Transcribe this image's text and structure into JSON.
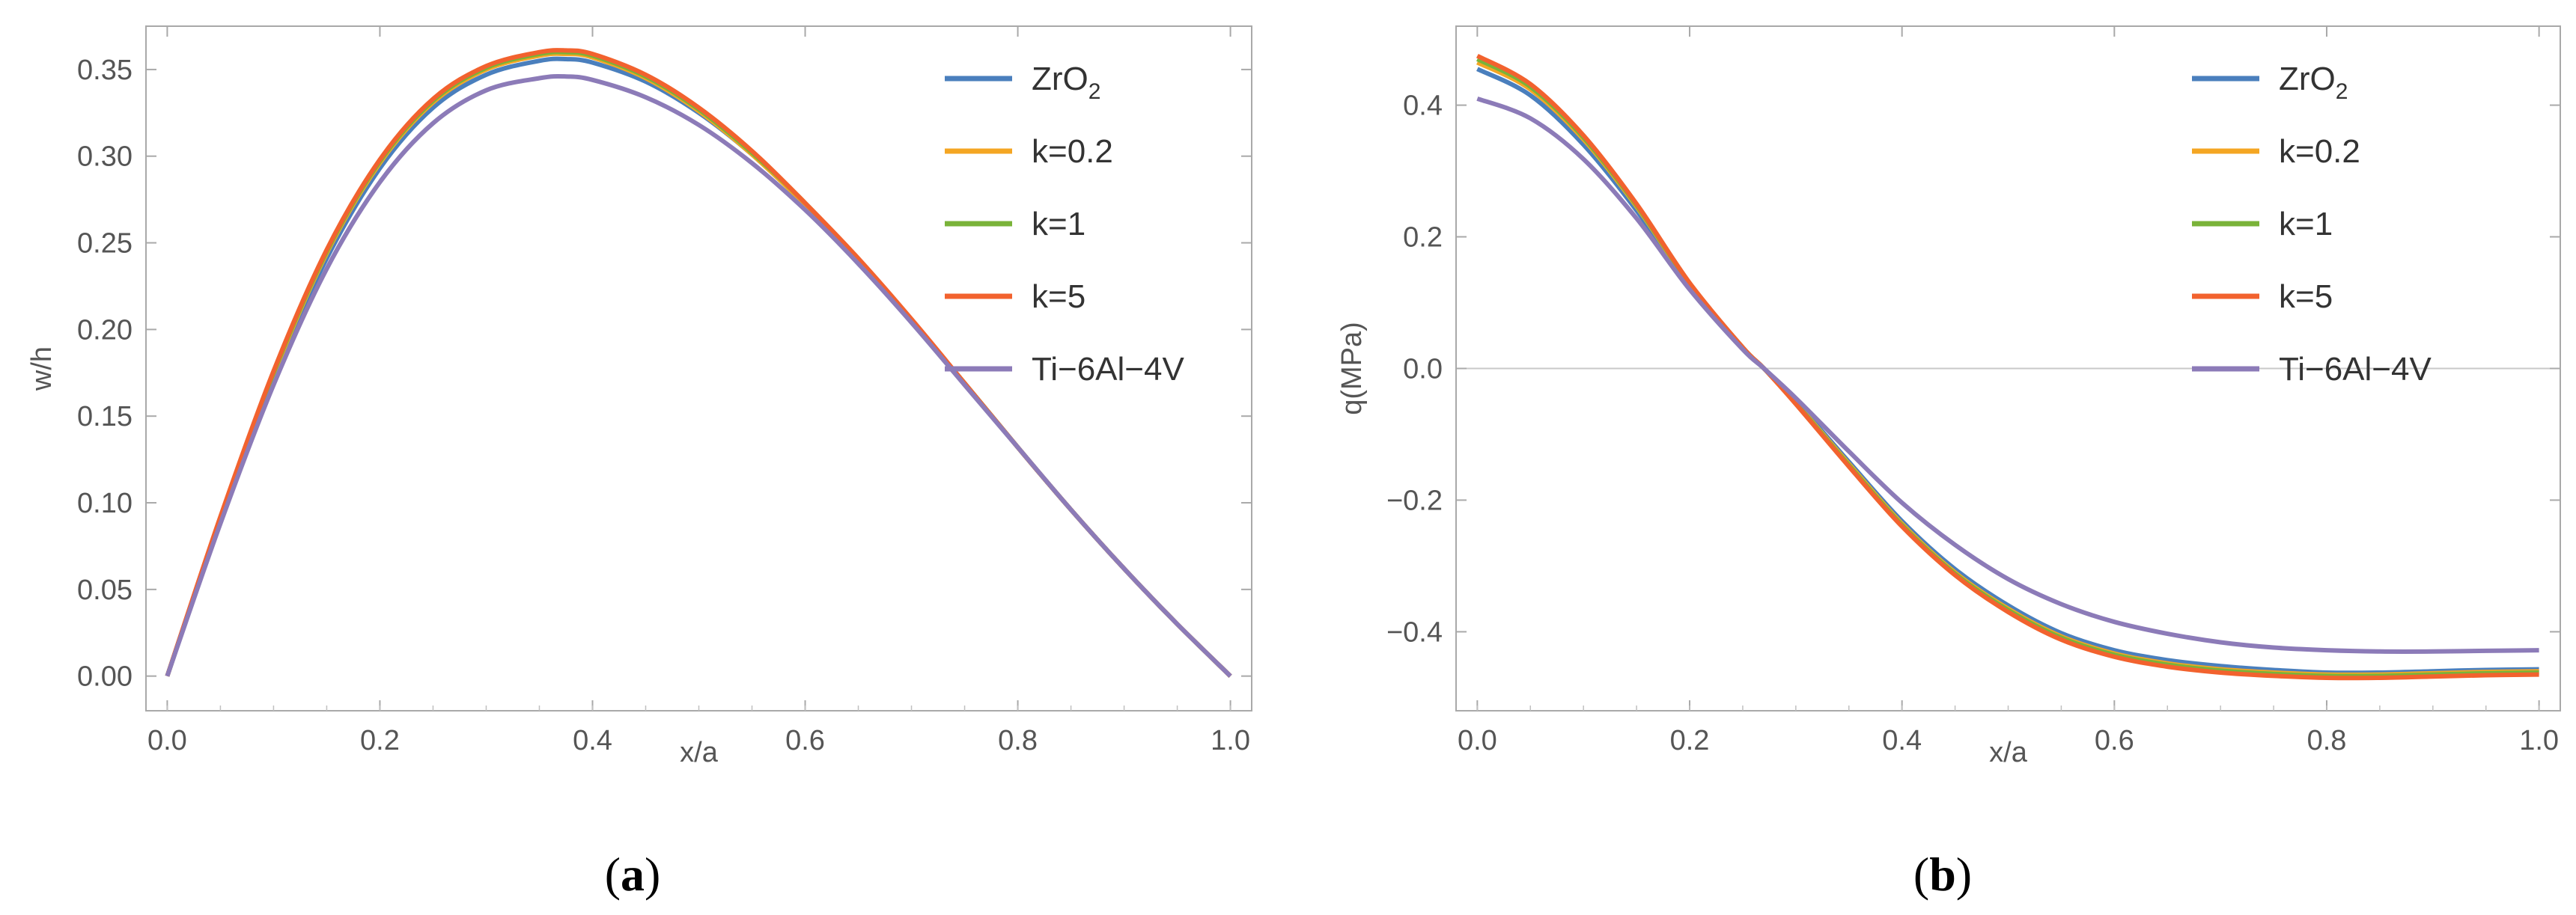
{
  "chart_data": [
    {
      "type": "line",
      "panel_label": "(a)",
      "panel_label_bold": "a",
      "xlabel": "x/a",
      "ylabel": "w/h",
      "xlim": [
        -0.02,
        1.02
      ],
      "ylim": [
        -0.02,
        0.375
      ],
      "xticks": [
        0.0,
        0.2,
        0.4,
        0.6,
        0.8,
        1.0
      ],
      "xtick_labels": [
        "0.0",
        "0.2",
        "0.4",
        "0.6",
        "0.8",
        "1.0"
      ],
      "yticks": [
        0.0,
        0.05,
        0.1,
        0.15,
        0.2,
        0.25,
        0.3,
        0.35
      ],
      "ytick_labels": [
        "0.00",
        "0.05",
        "0.10",
        "0.15",
        "0.20",
        "0.25",
        "0.30",
        "0.35"
      ],
      "legend_position": "top-right",
      "zero_line": false,
      "x": [
        0.0,
        0.05,
        0.1,
        0.15,
        0.2,
        0.25,
        0.3,
        0.35,
        0.375,
        0.4,
        0.45,
        0.5,
        0.55,
        0.6,
        0.65,
        0.7,
        0.75,
        0.8,
        0.85,
        0.9,
        0.95,
        1.0
      ],
      "series": [
        {
          "name": "ZrO2",
          "color": "#4a7fbd",
          "values": [
            0.0,
            0.09,
            0.172,
            0.241,
            0.293,
            0.328,
            0.347,
            0.355,
            0.356,
            0.354,
            0.343,
            0.325,
            0.301,
            0.272,
            0.24,
            0.205,
            0.169,
            0.132,
            0.096,
            0.062,
            0.03,
            0.0
          ]
        },
        {
          "name": "k=0.2",
          "color": "#f4a623",
          "values": [
            0.0,
            0.091,
            0.174,
            0.244,
            0.296,
            0.331,
            0.35,
            0.358,
            0.359,
            0.357,
            0.345,
            0.326,
            0.301,
            0.272,
            0.24,
            0.205,
            0.169,
            0.132,
            0.096,
            0.062,
            0.03,
            0.0
          ]
        },
        {
          "name": "k=1",
          "color": "#7ab339",
          "values": [
            0.0,
            0.091,
            0.175,
            0.245,
            0.297,
            0.332,
            0.351,
            0.359,
            0.36,
            0.358,
            0.346,
            0.327,
            0.302,
            0.273,
            0.24,
            0.205,
            0.169,
            0.132,
            0.096,
            0.062,
            0.03,
            0.0
          ]
        },
        {
          "name": "k=5",
          "color": "#f2622e",
          "values": [
            0.0,
            0.092,
            0.176,
            0.246,
            0.298,
            0.333,
            0.352,
            0.36,
            0.361,
            0.359,
            0.347,
            0.328,
            0.303,
            0.273,
            0.241,
            0.206,
            0.169,
            0.132,
            0.096,
            0.062,
            0.03,
            0.0
          ]
        },
        {
          "name": "Ti-6Al-4V",
          "color": "#8c7bb8",
          "values": [
            0.0,
            0.088,
            0.168,
            0.235,
            0.285,
            0.319,
            0.338,
            0.345,
            0.346,
            0.344,
            0.334,
            0.318,
            0.296,
            0.269,
            0.238,
            0.204,
            0.168,
            0.132,
            0.096,
            0.062,
            0.03,
            0.0
          ]
        }
      ]
    },
    {
      "type": "line",
      "panel_label": "(b)",
      "panel_label_bold": "b",
      "xlabel": "x/a",
      "ylabel": "q(MPa)",
      "xlim": [
        -0.02,
        1.02
      ],
      "ylim": [
        -0.52,
        0.52
      ],
      "xticks": [
        0.0,
        0.2,
        0.4,
        0.6,
        0.8,
        1.0
      ],
      "xtick_labels": [
        "0.0",
        "0.2",
        "0.4",
        "0.6",
        "0.8",
        "1.0"
      ],
      "yticks": [
        0.4,
        0.2,
        0.0,
        -0.2,
        -0.4
      ],
      "ytick_labels": [
        "0.4",
        "0.2",
        "0.0",
        "-0.2",
        "-0.4"
      ],
      "legend_position": "top-right",
      "zero_line": true,
      "x": [
        0.0,
        0.05,
        0.1,
        0.15,
        0.2,
        0.25,
        0.27,
        0.3,
        0.35,
        0.4,
        0.45,
        0.5,
        0.55,
        0.6,
        0.65,
        0.7,
        0.75,
        0.8,
        0.85,
        0.9,
        0.95,
        1.0
      ],
      "series": [
        {
          "name": "ZrO2",
          "color": "#4a7fbd",
          "values": [
            0.455,
            0.415,
            0.34,
            0.24,
            0.125,
            0.03,
            0.0,
            -0.05,
            -0.142,
            -0.232,
            -0.305,
            -0.36,
            -0.402,
            -0.428,
            -0.443,
            -0.452,
            -0.458,
            -0.462,
            -0.462,
            -0.46,
            -0.458,
            -0.457
          ]
        },
        {
          "name": "k=0.2",
          "color": "#f4a623",
          "values": [
            0.465,
            0.424,
            0.348,
            0.246,
            0.128,
            0.031,
            0.0,
            -0.052,
            -0.145,
            -0.236,
            -0.31,
            -0.365,
            -0.407,
            -0.433,
            -0.448,
            -0.457,
            -0.462,
            -0.465,
            -0.465,
            -0.463,
            -0.461,
            -0.46
          ]
        },
        {
          "name": "k=1",
          "color": "#7ab339",
          "values": [
            0.47,
            0.428,
            0.351,
            0.248,
            0.129,
            0.032,
            0.0,
            -0.053,
            -0.147,
            -0.238,
            -0.312,
            -0.367,
            -0.409,
            -0.435,
            -0.45,
            -0.459,
            -0.464,
            -0.467,
            -0.467,
            -0.465,
            -0.463,
            -0.462
          ]
        },
        {
          "name": "k=5",
          "color": "#f2622e",
          "values": [
            0.475,
            0.432,
            0.354,
            0.25,
            0.13,
            0.032,
            0.0,
            -0.054,
            -0.149,
            -0.24,
            -0.314,
            -0.37,
            -0.412,
            -0.438,
            -0.453,
            -0.462,
            -0.467,
            -0.47,
            -0.47,
            -0.468,
            -0.466,
            -0.465
          ]
        },
        {
          "name": "Ti-6Al-4V",
          "color": "#8c7bb8",
          "values": [
            0.41,
            0.38,
            0.318,
            0.228,
            0.12,
            0.029,
            0.0,
            -0.045,
            -0.126,
            -0.204,
            -0.268,
            -0.32,
            -0.358,
            -0.385,
            -0.403,
            -0.416,
            -0.424,
            -0.428,
            -0.43,
            -0.43,
            -0.429,
            -0.428
          ]
        }
      ]
    }
  ]
}
